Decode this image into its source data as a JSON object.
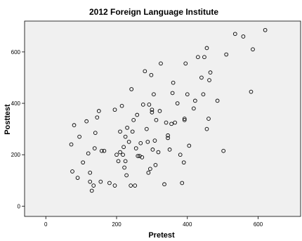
{
  "chart_data": {
    "type": "scatter",
    "title": "2012 Foreign Language Institute",
    "xlabel": "Pretest",
    "ylabel": "Posttest",
    "xlim": [
      -60,
      720
    ],
    "ylim": [
      -40,
      720
    ],
    "xticks": [
      0,
      200,
      400,
      600
    ],
    "yticks": [
      0,
      200,
      400,
      600
    ],
    "grid": false,
    "legend": "none",
    "colors": {
      "background": "#f0f0f0",
      "marker": "#000000"
    },
    "points": [
      {
        "x": 72,
        "y": 240
      },
      {
        "x": 75,
        "y": 135
      },
      {
        "x": 80,
        "y": 315
      },
      {
        "x": 90,
        "y": 110
      },
      {
        "x": 95,
        "y": 270
      },
      {
        "x": 105,
        "y": 170
      },
      {
        "x": 115,
        "y": 330
      },
      {
        "x": 120,
        "y": 205
      },
      {
        "x": 125,
        "y": 130
      },
      {
        "x": 125,
        "y": 95
      },
      {
        "x": 130,
        "y": 60
      },
      {
        "x": 135,
        "y": 80
      },
      {
        "x": 138,
        "y": 225
      },
      {
        "x": 140,
        "y": 285
      },
      {
        "x": 145,
        "y": 345
      },
      {
        "x": 150,
        "y": 370
      },
      {
        "x": 155,
        "y": 95
      },
      {
        "x": 158,
        "y": 215
      },
      {
        "x": 165,
        "y": 215
      },
      {
        "x": 180,
        "y": 90
      },
      {
        "x": 195,
        "y": 80
      },
      {
        "x": 195,
        "y": 375
      },
      {
        "x": 200,
        "y": 200
      },
      {
        "x": 205,
        "y": 175
      },
      {
        "x": 210,
        "y": 290
      },
      {
        "x": 210,
        "y": 210
      },
      {
        "x": 215,
        "y": 390
      },
      {
        "x": 218,
        "y": 200
      },
      {
        "x": 220,
        "y": 230
      },
      {
        "x": 222,
        "y": 150
      },
      {
        "x": 225,
        "y": 175
      },
      {
        "x": 225,
        "y": 270
      },
      {
        "x": 228,
        "y": 120
      },
      {
        "x": 230,
        "y": 305
      },
      {
        "x": 235,
        "y": 250
      },
      {
        "x": 240,
        "y": 80
      },
      {
        "x": 242,
        "y": 455
      },
      {
        "x": 245,
        "y": 290
      },
      {
        "x": 248,
        "y": 335
      },
      {
        "x": 252,
        "y": 80
      },
      {
        "x": 255,
        "y": 225
      },
      {
        "x": 258,
        "y": 355
      },
      {
        "x": 260,
        "y": 195
      },
      {
        "x": 265,
        "y": 195
      },
      {
        "x": 268,
        "y": 245
      },
      {
        "x": 272,
        "y": 190
      },
      {
        "x": 275,
        "y": 395
      },
      {
        "x": 280,
        "y": 525
      },
      {
        "x": 285,
        "y": 300
      },
      {
        "x": 288,
        "y": 250
      },
      {
        "x": 290,
        "y": 130
      },
      {
        "x": 292,
        "y": 395
      },
      {
        "x": 295,
        "y": 145
      },
      {
        "x": 298,
        "y": 510
      },
      {
        "x": 300,
        "y": 375
      },
      {
        "x": 300,
        "y": 365
      },
      {
        "x": 302,
        "y": 220
      },
      {
        "x": 305,
        "y": 435
      },
      {
        "x": 308,
        "y": 255
      },
      {
        "x": 310,
        "y": 160
      },
      {
        "x": 312,
        "y": 335
      },
      {
        "x": 318,
        "y": 210
      },
      {
        "x": 322,
        "y": 370
      },
      {
        "x": 325,
        "y": 555
      },
      {
        "x": 335,
        "y": 85
      },
      {
        "x": 340,
        "y": 325
      },
      {
        "x": 345,
        "y": 265
      },
      {
        "x": 345,
        "y": 275
      },
      {
        "x": 350,
        "y": 220
      },
      {
        "x": 355,
        "y": 320
      },
      {
        "x": 358,
        "y": 440
      },
      {
        "x": 360,
        "y": 480
      },
      {
        "x": 365,
        "y": 325
      },
      {
        "x": 372,
        "y": 400
      },
      {
        "x": 380,
        "y": 200
      },
      {
        "x": 385,
        "y": 90
      },
      {
        "x": 390,
        "y": 170
      },
      {
        "x": 392,
        "y": 335
      },
      {
        "x": 392,
        "y": 340
      },
      {
        "x": 395,
        "y": 555
      },
      {
        "x": 400,
        "y": 435
      },
      {
        "x": 405,
        "y": 235
      },
      {
        "x": 418,
        "y": 380
      },
      {
        "x": 422,
        "y": 410
      },
      {
        "x": 430,
        "y": 580
      },
      {
        "x": 440,
        "y": 500
      },
      {
        "x": 445,
        "y": 435
      },
      {
        "x": 448,
        "y": 580
      },
      {
        "x": 455,
        "y": 615
      },
      {
        "x": 455,
        "y": 300
      },
      {
        "x": 460,
        "y": 340
      },
      {
        "x": 462,
        "y": 490
      },
      {
        "x": 465,
        "y": 520
      },
      {
        "x": 485,
        "y": 410
      },
      {
        "x": 502,
        "y": 215
      },
      {
        "x": 510,
        "y": 590
      },
      {
        "x": 535,
        "y": 670
      },
      {
        "x": 558,
        "y": 660
      },
      {
        "x": 580,
        "y": 445
      },
      {
        "x": 585,
        "y": 610
      },
      {
        "x": 620,
        "y": 685
      }
    ]
  }
}
